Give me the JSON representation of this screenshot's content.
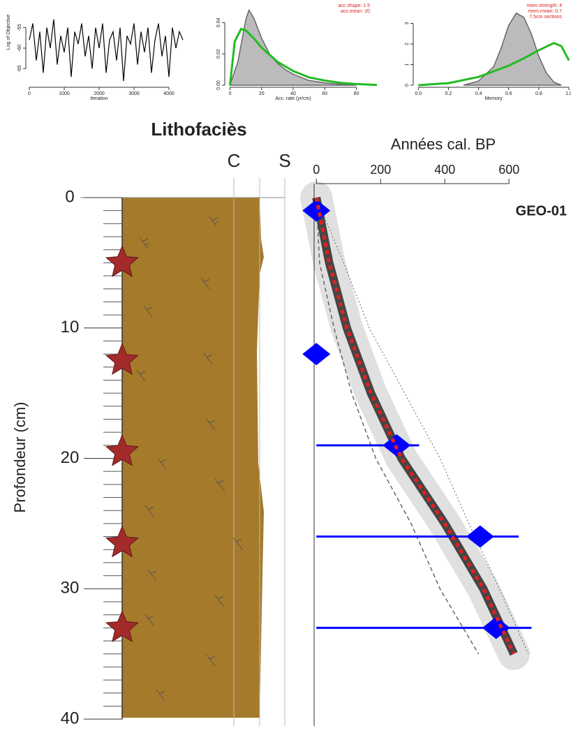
{
  "chart_data": [
    {
      "type": "trace",
      "xlabel": "Iteration",
      "ylabel": "Log of Objective",
      "x": [
        0,
        100,
        200,
        300,
        400,
        500,
        600,
        700,
        800,
        900,
        1000,
        1100,
        1200,
        1300,
        1400,
        1500,
        1600,
        1700,
        1800,
        1900,
        2000,
        2100,
        2200,
        2300,
        2400,
        2500,
        2600,
        2700,
        2800,
        2900,
        3000,
        3100,
        3200,
        3300,
        3400,
        3500,
        3600,
        3700,
        3800,
        3900,
        4000,
        4100,
        4200,
        4300,
        4400
      ],
      "values": [
        -58,
        -54,
        -63,
        -56,
        -66,
        -55,
        -60,
        -53,
        -64,
        -57,
        -61,
        -55,
        -67,
        -56,
        -59,
        -54,
        -62,
        -57,
        -65,
        -55,
        -60,
        -54,
        -66,
        -58,
        -56,
        -63,
        -55,
        -68,
        -57,
        -59,
        -54,
        -64,
        -56,
        -61,
        -55,
        -66,
        -58,
        -54,
        -62,
        -57,
        -67,
        -55,
        -60,
        -56,
        -58
      ],
      "color": "#000000",
      "xlim": [
        -40,
        4460
      ],
      "ylim": [
        -69,
        -50
      ],
      "xticks": [
        0,
        1000,
        2000,
        3000,
        4000
      ],
      "yticks": [
        -55,
        -60,
        -65
      ]
    },
    {
      "type": "density",
      "xlabel": "Acc. rate (yr/cm)",
      "annotations": [
        "acc.shape: 1.5",
        "acc.mean: 20"
      ],
      "series": [
        {
          "color": "#bbbbbb",
          "fill": true,
          "x": [
            0,
            5,
            10,
            12,
            15,
            20,
            25,
            30,
            35,
            40,
            50,
            60,
            70,
            80
          ],
          "values": [
            0,
            0.015,
            0.042,
            0.048,
            0.043,
            0.03,
            0.02,
            0.014,
            0.01,
            0.007,
            0.003,
            0.0015,
            0.0005,
            0
          ]
        },
        {
          "color": "#22bb22",
          "fill": false,
          "x": [
            0,
            3,
            7,
            10,
            15,
            20,
            30,
            40,
            50,
            60,
            70,
            80,
            93
          ],
          "values": [
            0,
            0.028,
            0.036,
            0.035,
            0.03,
            0.024,
            0.015,
            0.009,
            0.005,
            0.003,
            0.0015,
            0.0007,
            0.0002
          ]
        }
      ],
      "xlim": [
        -2,
        93
      ],
      "ylim": [
        0,
        0.05
      ],
      "xticks": [
        0,
        20,
        40,
        60,
        80
      ],
      "yticks": [
        {
          "value": 0,
          "label": "0.00"
        },
        {
          "value": 0.02,
          "label": "0.02"
        },
        {
          "value": 0.04,
          "label": "0.04"
        }
      ]
    },
    {
      "type": "density",
      "xlabel": "Memory",
      "annotations": [
        "mem.strength: 4",
        "mem.mean: 0.7",
        "7.5cm sections"
      ],
      "series": [
        {
          "color": "#bbbbbb",
          "fill": true,
          "x": [
            0.3,
            0.4,
            0.5,
            0.55,
            0.6,
            0.65,
            0.7,
            0.75,
            0.8,
            0.85,
            0.9,
            0.95
          ],
          "values": [
            0,
            0.2,
            0.9,
            1.8,
            2.9,
            3.5,
            3.3,
            2.5,
            1.4,
            0.6,
            0.15,
            0
          ]
        },
        {
          "color": "#22bb22",
          "fill": false,
          "x": [
            0,
            0.2,
            0.4,
            0.6,
            0.7,
            0.8,
            0.9,
            0.95,
            1
          ],
          "values": [
            0,
            0.1,
            0.4,
            0.95,
            1.3,
            1.7,
            2.05,
            1.9,
            1.2
          ]
        }
      ],
      "xlim": [
        -0.02,
        1
      ],
      "ylim": [
        0,
        3.8
      ],
      "xticks": [
        {
          "value": 0,
          "label": "0.0"
        },
        0.2,
        0.4,
        0.6,
        0.8,
        {
          "value": 1,
          "label": "1.0"
        }
      ],
      "yticks": [
        0,
        1,
        2,
        3
      ]
    },
    {
      "type": "lithology",
      "title": "Lithofaciès",
      "columns": [
        "C",
        "S"
      ],
      "ylabel": "Profondeur (cm)",
      "ylim": [
        0,
        40
      ],
      "yticks": [
        0,
        10,
        20,
        30,
        40
      ],
      "yminor": [
        1,
        2,
        3,
        4,
        5,
        6,
        7,
        8,
        9,
        11,
        12,
        13,
        14,
        15,
        16,
        17,
        18,
        19,
        21,
        22,
        23,
        24,
        25,
        26,
        27,
        28,
        29,
        31,
        32,
        33,
        34,
        35,
        36,
        37,
        38,
        39
      ],
      "samples": [
        5,
        12.5,
        19.5,
        26.5,
        33
      ],
      "sample_color": "#a52a2a",
      "facies_color": "#a57a2a"
    },
    {
      "type": "age-depth",
      "xlabel": "Années cal. BP",
      "label": "GEO-01",
      "xlim": [
        -7,
        793
      ],
      "xticks": [
        0,
        200,
        400,
        600
      ],
      "ylim": [
        0,
        40
      ],
      "depth": [
        0,
        5,
        10,
        15,
        20,
        25,
        30,
        35
      ],
      "mean": [
        0,
        40,
        95,
        170,
        265,
        400,
        520,
        615
      ],
      "upper": [
        0,
        85,
        165,
        275,
        385,
        475,
        570,
        660
      ],
      "lower": [
        0,
        10,
        55,
        110,
        185,
        295,
        385,
        505
      ],
      "dates": {
        "depth": [
          1,
          12,
          19,
          26,
          33
        ],
        "age": [
          0,
          0,
          250,
          510,
          560
        ],
        "age_max": [
          5,
          3,
          320,
          630,
          670
        ],
        "color": "#0000ff"
      },
      "mean_color": "#e02020"
    }
  ]
}
